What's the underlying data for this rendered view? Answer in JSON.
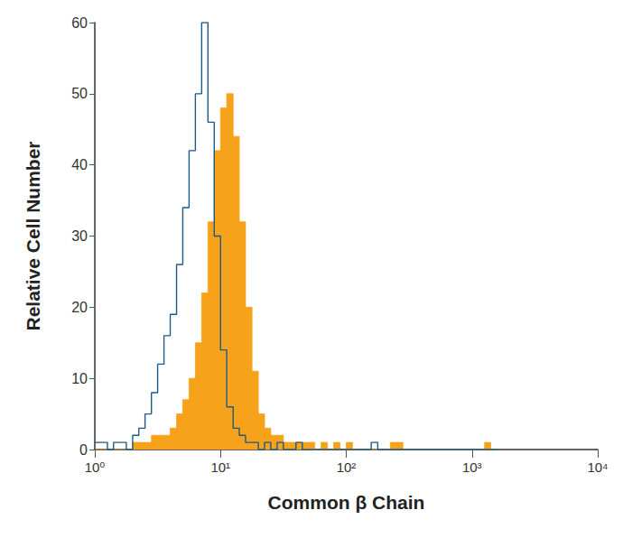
{
  "chart_data": {
    "type": "histogram",
    "x_label": "Common β Chain",
    "y_label": "Relative Cell Number",
    "log": "x",
    "grid": false,
    "bins": [
      1.0,
      1.12,
      1.26,
      1.41,
      1.58,
      1.78,
      2.0,
      2.24,
      2.51,
      2.82,
      3.16,
      3.55,
      3.98,
      4.47,
      5.01,
      5.62,
      6.31,
      7.08,
      7.94,
      8.91,
      10.0,
      11.2,
      12.6,
      14.1,
      15.8,
      17.8,
      20.0,
      22.4,
      25.1,
      28.2,
      31.6,
      35.5,
      39.8,
      44.7,
      50.1,
      56.2,
      63.1,
      70.8,
      79.4,
      89.1,
      100,
      112,
      126,
      141,
      158,
      178,
      200,
      224,
      251,
      282,
      316,
      355,
      398,
      447,
      501,
      562,
      631,
      708,
      794,
      891,
      1000,
      1120,
      1260,
      1410,
      1580
    ],
    "series": [
      {
        "type": "area",
        "color": "#f7a21b",
        "values": [
          0,
          0,
          0,
          0,
          0,
          0,
          1,
          1,
          1,
          2,
          2,
          2,
          3,
          5,
          7,
          10,
          15,
          22,
          32,
          42,
          48,
          50,
          44,
          32,
          20,
          11,
          5,
          3,
          2,
          2,
          1,
          1,
          1,
          1,
          1,
          0,
          1,
          0,
          1,
          0,
          1,
          0,
          0,
          0,
          0,
          0,
          0,
          1,
          1,
          0,
          0,
          0,
          0,
          0,
          0,
          0,
          0,
          0,
          0,
          0,
          0,
          0,
          1,
          0
        ]
      },
      {
        "type": "line",
        "color": "#1d5a86",
        "values": [
          1,
          1,
          0,
          1,
          1,
          0,
          2,
          3,
          5,
          8,
          12,
          16,
          19,
          26,
          34,
          42,
          50,
          60,
          46,
          30,
          14,
          6,
          3,
          2,
          1,
          1,
          0,
          1,
          0,
          1,
          0,
          0,
          1,
          0,
          0,
          0,
          0,
          0,
          0,
          0,
          0,
          0,
          0,
          0,
          1,
          0,
          0,
          0,
          0,
          0,
          0,
          0,
          0,
          0,
          0,
          0,
          0,
          0,
          0,
          0,
          0,
          0,
          0,
          0
        ]
      }
    ],
    "xlim": [
      1,
      10000
    ],
    "xticks": [
      {
        "value": 1,
        "label": "10⁰"
      },
      {
        "value": 10,
        "label": "10¹"
      },
      {
        "value": 100,
        "label": "10²"
      },
      {
        "value": 1000,
        "label": "10³"
      },
      {
        "value": 10000,
        "label": "10⁴"
      }
    ],
    "ylim": [
      0,
      60
    ],
    "yticks": [
      0,
      10,
      20,
      30,
      40,
      50,
      60
    ]
  }
}
